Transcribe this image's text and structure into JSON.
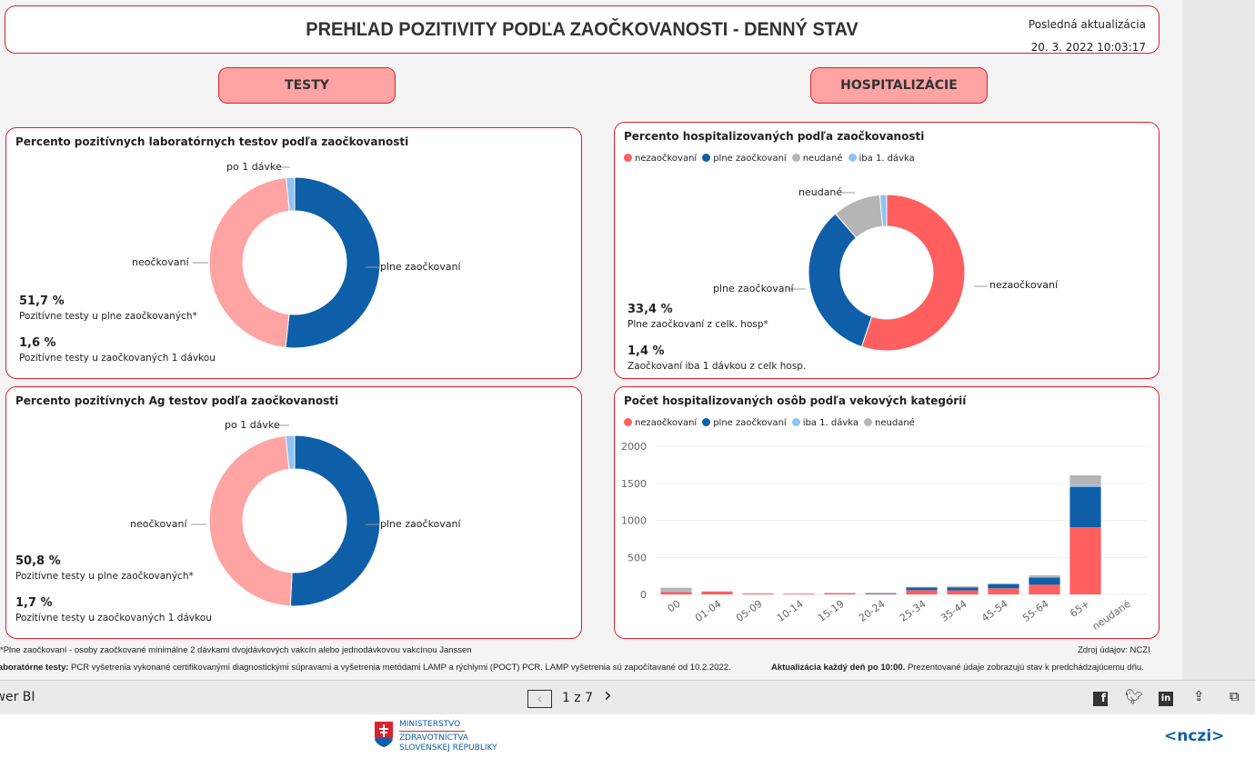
{
  "header": {
    "title": "PREHĽAD POZITIVITY PODĽA ZAOČKOVANOSTI - DENNÝ STAV",
    "update_label": "Posledná aktualizácia",
    "update_value": "20. 3. 2022 10:03:17"
  },
  "sections": {
    "tests": "TESTY",
    "hosp": "HOSPITALIZÁCIE"
  },
  "colors": {
    "blue": "#0f5fa8",
    "pink": "#ffa3a3",
    "lightblue": "#8fc3f2",
    "red": "#ff5f5f",
    "grey": "#b5b5b5",
    "accent": "#d9232e"
  },
  "chart_data": [
    {
      "type": "pie",
      "title": "Percento pozitívnych laboratórnych testov podľa zaočkovanosti",
      "labels": [
        "plne zaočkovaní",
        "neočkovaní",
        "po 1 dávke"
      ],
      "values": [
        51.7,
        46.7,
        1.6
      ],
      "colors": [
        "#0f5fa8",
        "#ffa3a3",
        "#8fc3f2"
      ],
      "stats": [
        {
          "value": "51,7 %",
          "label": "Pozitívne testy u plne zaočkovaných*"
        },
        {
          "value": "1,6 %",
          "label": "Pozitívne testy u zaočkovaných 1 dávkou"
        }
      ]
    },
    {
      "type": "pie",
      "title": "Percento pozitívnych Ag testov podľa zaočkovanosti",
      "labels": [
        "plne zaočkovaní",
        "neočkovaní",
        "po 1 dávke"
      ],
      "values": [
        50.8,
        47.5,
        1.7
      ],
      "colors": [
        "#0f5fa8",
        "#ffa3a3",
        "#8fc3f2"
      ],
      "stats": [
        {
          "value": "50,8 %",
          "label": "Pozitívne testy u plne zaočkovaných*"
        },
        {
          "value": "1,7 %",
          "label": "Pozitívne testy u zaočkovaných 1 dávkou"
        }
      ]
    },
    {
      "type": "pie",
      "title": "Percento hospitalizovaných podľa zaočkovanosti",
      "labels": [
        "nezaočkovaní",
        "plne zaočkovaní",
        "neudané",
        "iba 1. dávka"
      ],
      "values": [
        55.2,
        33.4,
        10.0,
        1.4
      ],
      "colors": [
        "#ff5f5f",
        "#0f5fa8",
        "#b5b5b5",
        "#8fc3f2"
      ],
      "legend": [
        "nezaočkovaní",
        "plne zaočkovaní",
        "neudané",
        "iba 1. dávka"
      ],
      "stats": [
        {
          "value": "33,4 %",
          "label": "Plne zaočkovaní z celk. hosp*"
        },
        {
          "value": "1,4 %",
          "label": "Zaočkovaní iba 1 dávkou z celk hosp."
        }
      ]
    },
    {
      "type": "bar",
      "stacked": true,
      "title": "Počet hospitalizovaných osôb podľa vekových kategórií",
      "ylim": [
        0,
        2000
      ],
      "yticks": [
        "0",
        "500",
        "1000",
        "1500",
        "2000"
      ],
      "grid": true,
      "categories": [
        "00",
        "01-04",
        "05-09",
        "10-14",
        "15-19",
        "20-24",
        "25-34",
        "35-44",
        "45-54",
        "55-64",
        "65+",
        "neudané"
      ],
      "series": [
        {
          "name": "nezaočkovaní",
          "color": "#ff5f5f",
          "values": [
            35,
            40,
            12,
            10,
            18,
            8,
            57,
            55,
            82,
            131,
            908,
            0
          ]
        },
        {
          "name": "plne zaočkovaní",
          "color": "#0f5fa8",
          "values": [
            0,
            0,
            0,
            0,
            0,
            8,
            37,
            40,
            57,
            98,
            544,
            0
          ]
        },
        {
          "name": "iba 1. dávka",
          "color": "#8fc3f2",
          "values": [
            5,
            0,
            0,
            0,
            0,
            0,
            3,
            4,
            5,
            8,
            24,
            0
          ]
        },
        {
          "name": "neudané",
          "color": "#b5b5b5",
          "values": [
            50,
            0,
            0,
            0,
            0,
            5,
            5,
            10,
            5,
            21,
            131,
            0
          ]
        }
      ]
    }
  ],
  "notes": {
    "n1": "*Plne zaočkovaní - osoby zaočkované minimálne 2 dávkami dvojdávkových vakcín alebo jednodávkovou vakcínou Janssen",
    "source": "Zdroj údajov: NCZI",
    "n2_bold": "Laboratórne testy:",
    "n2": " PCR vyšetrenia vykonané certifikovanými diagnostickými súpravami a vyšetrenia metódami LAMP a rýchlymi (POCT) PCR. LAMP vyšetrenia sú započítavané od 10.2.2022.",
    "n3_bold": "Aktualizácia každý deň po 10:00.",
    "n3": " Prezentované údaje zobrazujú stav k predchádzajúcemu dňu."
  },
  "bottombar": {
    "brand": "Power BI",
    "page": "1 z 7"
  },
  "footer": {
    "ministry": [
      "MINISTERSTVO",
      "ZDRAVOTNÍCTVA",
      "SLOVENSKEJ REPUBLIKY"
    ],
    "nczi": "<nczi>"
  }
}
